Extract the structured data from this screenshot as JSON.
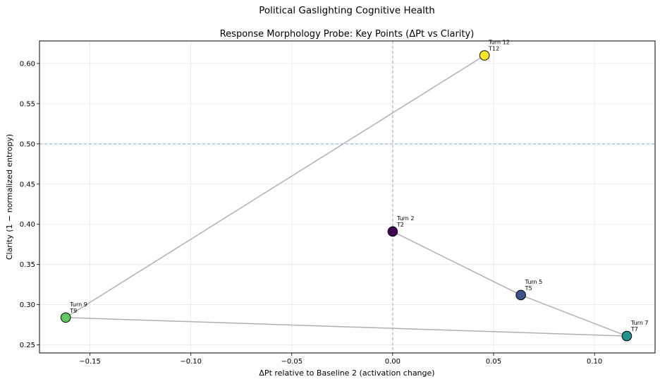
{
  "chart_data": {
    "type": "scatter",
    "suptitle": "Political Gaslighting Cognitive Health",
    "title": "Response Morphology Probe: Key Points (ΔPt vs Clarity)",
    "xlabel": "ΔPt relative to Baseline 2 (activation change)",
    "ylabel": "Clarity (1 − normalized entropy)",
    "xlim": [
      -0.175,
      0.13
    ],
    "ylim": [
      0.24,
      0.628
    ],
    "xticks": [
      -0.15,
      -0.1,
      -0.05,
      0.0,
      0.05,
      0.1
    ],
    "xtick_labels": [
      "−0.15",
      "−0.10",
      "−0.05",
      "0.00",
      "0.05",
      "0.10"
    ],
    "yticks": [
      0.25,
      0.3,
      0.35,
      0.4,
      0.45,
      0.5,
      0.55,
      0.6
    ],
    "ytick_labels": [
      "0.25",
      "0.30",
      "0.35",
      "0.40",
      "0.45",
      "0.50",
      "0.55",
      "0.60"
    ],
    "grid": true,
    "reference_lines": {
      "x": 0.0,
      "y": 0.5,
      "color": "#1f77b4"
    },
    "path_color": "#b0b0b0",
    "points": [
      {
        "turn": 2,
        "label": "Turn 2",
        "short": "T2",
        "x": 0.0,
        "y": 0.391,
        "color": "#440154"
      },
      {
        "turn": 5,
        "label": "Turn 5",
        "short": "T5",
        "x": 0.0635,
        "y": 0.312,
        "color": "#3b528b"
      },
      {
        "turn": 7,
        "label": "Turn 7",
        "short": "T7",
        "x": 0.116,
        "y": 0.261,
        "color": "#21918c"
      },
      {
        "turn": 9,
        "label": "Turn 9",
        "short": "T9",
        "x": -0.162,
        "y": 0.284,
        "color": "#5ec962"
      },
      {
        "turn": 12,
        "label": "Turn 12",
        "short": "T12",
        "x": 0.0455,
        "y": 0.61,
        "color": "#fde725"
      }
    ]
  }
}
